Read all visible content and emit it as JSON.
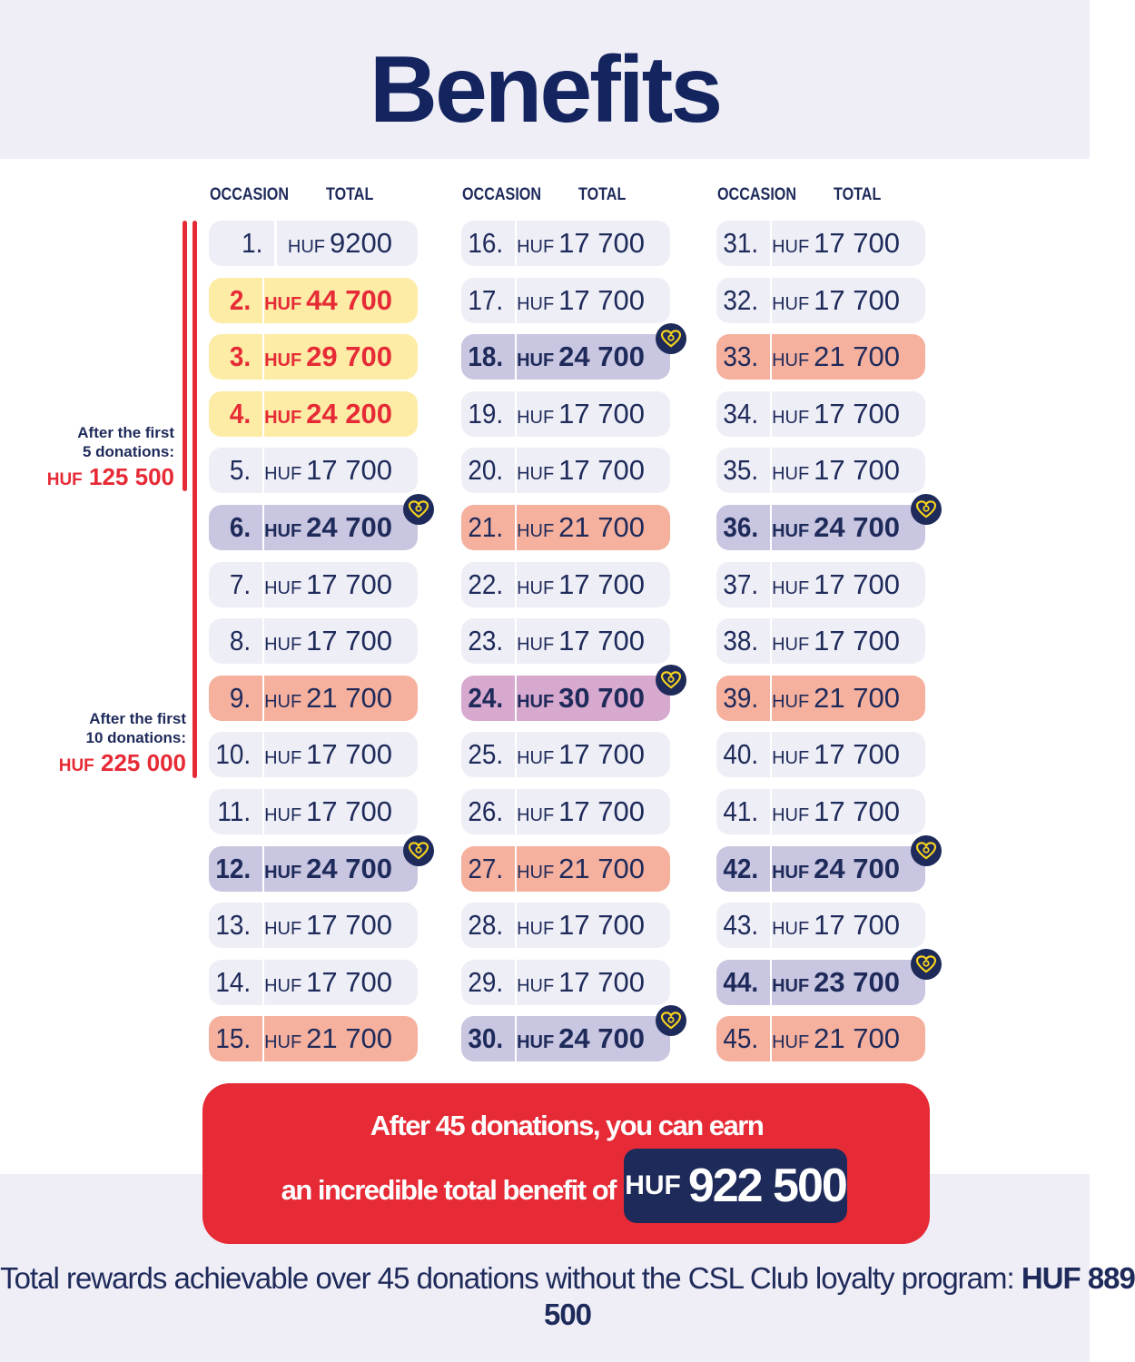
{
  "title": "Benefits",
  "headers": {
    "occasion": "OCCASION",
    "total": "TOTAL"
  },
  "currency": "HUF",
  "colors": {
    "navy": "#1e2a5a",
    "red": "#e62b36",
    "plain": "#eeeef6",
    "yellow": "#fdeca6",
    "salmon": "#f5b09e",
    "lavender": "#c8c6e0",
    "purple": "#d7a9cf",
    "heart": "#f5d21f"
  },
  "columns": [
    [
      {
        "n": "1.",
        "amount": "9200",
        "style": "plain"
      },
      {
        "n": "2.",
        "amount": "44 700",
        "style": "yellow"
      },
      {
        "n": "3.",
        "amount": "29 700",
        "style": "yellow"
      },
      {
        "n": "4.",
        "amount": "24 200",
        "style": "yellow"
      },
      {
        "n": "5.",
        "amount": "17 700",
        "style": "plain"
      },
      {
        "n": "6.",
        "amount": "24 700",
        "style": "lav",
        "heart": true
      },
      {
        "n": "7.",
        "amount": "17 700",
        "style": "plain"
      },
      {
        "n": "8.",
        "amount": "17 700",
        "style": "plain"
      },
      {
        "n": "9.",
        "amount": "21 700",
        "style": "salmon"
      },
      {
        "n": "10.",
        "amount": "17 700",
        "style": "plain"
      },
      {
        "n": "11.",
        "amount": "17 700",
        "style": "plain"
      },
      {
        "n": "12.",
        "amount": "24 700",
        "style": "lav",
        "heart": true
      },
      {
        "n": "13.",
        "amount": "17 700",
        "style": "plain"
      },
      {
        "n": "14.",
        "amount": "17 700",
        "style": "plain"
      },
      {
        "n": "15.",
        "amount": "21 700",
        "style": "salmon"
      }
    ],
    [
      {
        "n": "16.",
        "amount": "17 700",
        "style": "plain"
      },
      {
        "n": "17.",
        "amount": "17 700",
        "style": "plain"
      },
      {
        "n": "18.",
        "amount": "24 700",
        "style": "lav",
        "heart": true
      },
      {
        "n": "19.",
        "amount": "17 700",
        "style": "plain"
      },
      {
        "n": "20.",
        "amount": "17 700",
        "style": "plain"
      },
      {
        "n": "21.",
        "amount": "21 700",
        "style": "salmon"
      },
      {
        "n": "22.",
        "amount": "17 700",
        "style": "plain"
      },
      {
        "n": "23.",
        "amount": "17 700",
        "style": "plain"
      },
      {
        "n": "24.",
        "amount": "30 700",
        "style": "purple",
        "heart": true
      },
      {
        "n": "25.",
        "amount": "17 700",
        "style": "plain"
      },
      {
        "n": "26.",
        "amount": "17 700",
        "style": "plain"
      },
      {
        "n": "27.",
        "amount": "21 700",
        "style": "salmon"
      },
      {
        "n": "28.",
        "amount": "17 700",
        "style": "plain"
      },
      {
        "n": "29.",
        "amount": "17 700",
        "style": "plain"
      },
      {
        "n": "30.",
        "amount": "24 700",
        "style": "lav",
        "heart": true
      }
    ],
    [
      {
        "n": "31.",
        "amount": "17 700",
        "style": "plain"
      },
      {
        "n": "32.",
        "amount": "17 700",
        "style": "plain"
      },
      {
        "n": "33.",
        "amount": "21 700",
        "style": "salmon"
      },
      {
        "n": "34.",
        "amount": "17 700",
        "style": "plain"
      },
      {
        "n": "35.",
        "amount": "17 700",
        "style": "plain"
      },
      {
        "n": "36.",
        "amount": "24 700",
        "style": "lav",
        "heart": true
      },
      {
        "n": "37.",
        "amount": "17 700",
        "style": "plain"
      },
      {
        "n": "38.",
        "amount": "17 700",
        "style": "plain"
      },
      {
        "n": "39.",
        "amount": "21 700",
        "style": "salmon"
      },
      {
        "n": "40.",
        "amount": "17 700",
        "style": "plain"
      },
      {
        "n": "41.",
        "amount": "17 700",
        "style": "plain"
      },
      {
        "n": "42.",
        "amount": "24 700",
        "style": "lav",
        "heart": true
      },
      {
        "n": "43.",
        "amount": "17 700",
        "style": "plain"
      },
      {
        "n": "44.",
        "amount": "23 700",
        "style": "lav",
        "heart": true
      },
      {
        "n": "45.",
        "amount": "21 700",
        "style": "salmon"
      }
    ]
  ],
  "annotations": [
    {
      "line1": "After the first",
      "line2": "5 donations:",
      "value": "125 500"
    },
    {
      "line1": "After the first",
      "line2": "10 donations:",
      "value": "225 000"
    }
  ],
  "summary": {
    "line1": "After 45 donations, you can earn",
    "line2": "an incredible total benefit of",
    "total": "922 500"
  },
  "footer": {
    "text": "Total rewards achievable over 45 donations without the CSL Club loyalty program:",
    "total": "HUF 889 500"
  }
}
